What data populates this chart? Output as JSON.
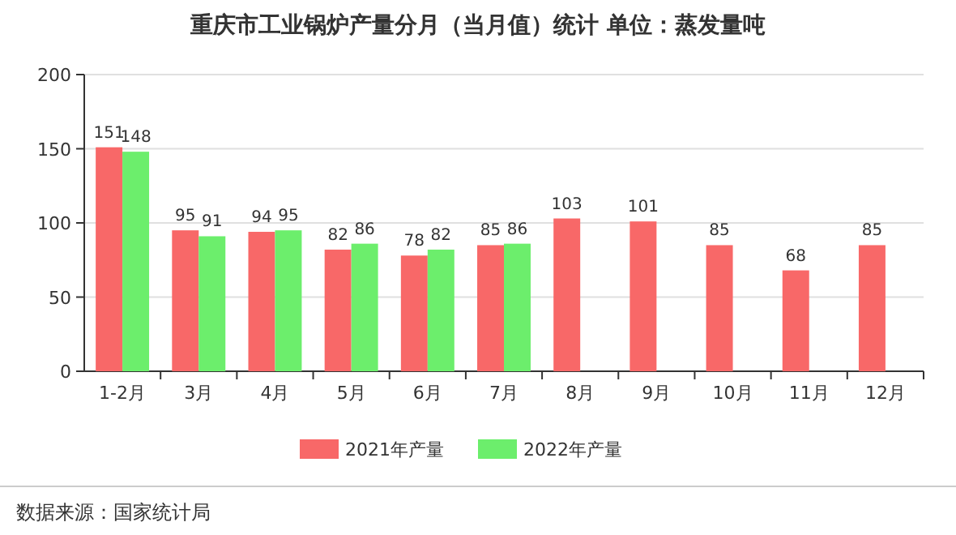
{
  "chart_data": {
    "type": "bar",
    "title": "重庆市工业锅炉产量分月（当月值）统计  单位：蒸发量吨",
    "categories": [
      "1-2月",
      "3月",
      "4月",
      "5月",
      "6月",
      "7月",
      "8月",
      "9月",
      "10月",
      "11月",
      "12月"
    ],
    "series": [
      {
        "name": "2021年产量",
        "color": "#f86868",
        "values": [
          151,
          95,
          94,
          82,
          78,
          85,
          103,
          101,
          85,
          68,
          85
        ]
      },
      {
        "name": "2022年产量",
        "color": "#6cee6c",
        "values": [
          148,
          91,
          95,
          86,
          82,
          86,
          null,
          null,
          null,
          null,
          null
        ]
      }
    ],
    "ylim": [
      0,
      200
    ],
    "yticks": [
      0,
      50,
      100,
      150,
      200
    ],
    "grid": "y",
    "legend": "bottom",
    "data_labels": true,
    "annotations": [
      "数据来源：国家统计局"
    ]
  }
}
